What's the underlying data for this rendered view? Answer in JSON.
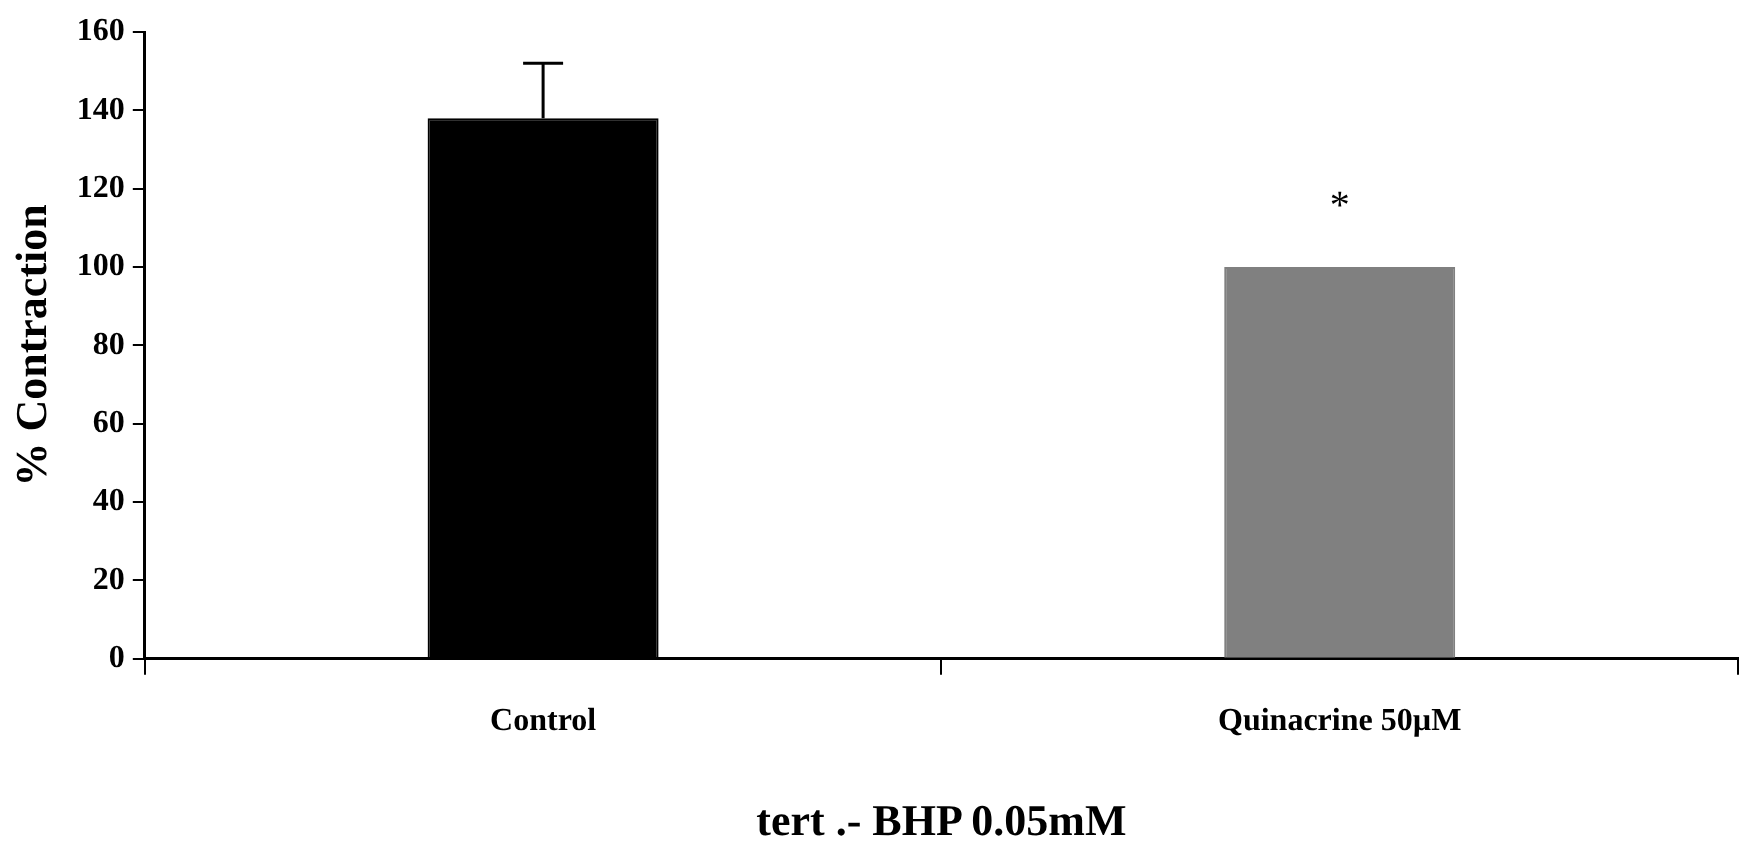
{
  "chart_data": {
    "type": "bar",
    "ylabel": "% Contraction",
    "xlabel": "tert .- BHP 0.05mM",
    "categories": [
      "Control",
      "Quinacrine 50µM"
    ],
    "values": [
      138,
      100
    ],
    "colors": [
      "#000000",
      "#808080"
    ],
    "errors": [
      [
        138,
        152
      ],
      null
    ],
    "ylim": [
      0,
      160
    ],
    "yticks": [
      0,
      20,
      40,
      60,
      80,
      100,
      120,
      140,
      160
    ],
    "grid": false,
    "legend": false,
    "annotations": [
      {
        "text": "*",
        "x": "Quinacrine 50µM",
        "y": 100
      }
    ]
  }
}
